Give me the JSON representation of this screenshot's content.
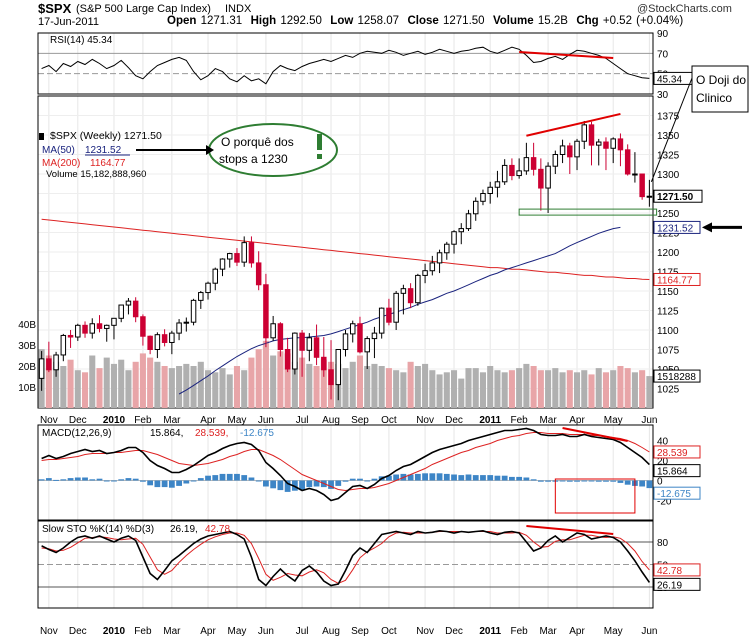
{
  "header": {
    "symbol": "$SPX",
    "name": "(S&P 500 Large Cap Index)",
    "exchange": "INDX",
    "watermark": "@StockCharts.com",
    "date": "17-Jun-2011",
    "quote": {
      "open_label": "Open",
      "open": "1271.31",
      "high_label": "High",
      "high": "1292.50",
      "low_label": "Low",
      "low": "1258.07",
      "close_label": "Close",
      "close": "1271.50",
      "volume_label": "Volume",
      "volume": "15.2B",
      "chg_label": "Chg",
      "chg": "+0.52 (+0.04%)"
    }
  },
  "annotations": {
    "doji_note": "O Doji do Clinico",
    "ellipse_note_line1": "O porquê dos",
    "ellipse_note_line2": "stops a 1230"
  },
  "colors": {
    "up": "#000000",
    "down": "#cc0033",
    "ma50": "#1a237e",
    "ma200": "#dd2222",
    "vol_up": "#b0b0b0",
    "vol_down": "#e8a5a8",
    "macd_hist": "#3d85c6",
    "annot_red": "#e00000",
    "annot_green": "#2e7d32"
  },
  "x_axis": {
    "labels": [
      "Nov",
      "Dec",
      "2010",
      "Feb",
      "Mar",
      "Apr",
      "May",
      "Jun",
      "Jul",
      "Aug",
      "Sep",
      "Oct",
      "Nov",
      "Dec",
      "2011",
      "Feb",
      "Mar",
      "Apr",
      "May",
      "Jun"
    ],
    "label_weeks": [
      1,
      5,
      10,
      14,
      18,
      23,
      27,
      31,
      36,
      40,
      44,
      48,
      53,
      57,
      62,
      66,
      70,
      74,
      79,
      84
    ]
  },
  "chart_data": [
    {
      "type": "line",
      "panel": "rsi",
      "legend": "RSI(14) 45.34",
      "ylim": [
        30,
        90
      ],
      "ticks": [
        30,
        50,
        70,
        90
      ],
      "reference_lines": [
        30,
        50,
        70
      ],
      "last_value_label": "45.34",
      "values": [
        55,
        58,
        52,
        60,
        57,
        62,
        59,
        64,
        60,
        55,
        58,
        63,
        56,
        48,
        45,
        52,
        58,
        61,
        64,
        66,
        63,
        52,
        44,
        48,
        55,
        52,
        45,
        42,
        48,
        43,
        45,
        40,
        52,
        58,
        55,
        53,
        57,
        60,
        62,
        64,
        62,
        65,
        68,
        66,
        70,
        72,
        71,
        70,
        73,
        71,
        68,
        70,
        72,
        69,
        71,
        74,
        72,
        70,
        72,
        73,
        75,
        76,
        72,
        70,
        73,
        76,
        74,
        68,
        61,
        62,
        65,
        67,
        64,
        69,
        73,
        72,
        70,
        68,
        65,
        60,
        55,
        50,
        48,
        46,
        45.34
      ]
    },
    {
      "type": "candlestick",
      "panel": "price",
      "legend": "$SPX (Weekly) 1271.50",
      "ylim": [
        1000,
        1400
      ],
      "ticks": [
        1025,
        1050,
        1075,
        1100,
        1125,
        1150,
        1175,
        1200,
        1225,
        1250,
        1275,
        1300,
        1325,
        1350,
        1375
      ],
      "ohlc": [
        [
          1038,
          1073,
          1022,
          1063
        ],
        [
          1063,
          1085,
          1046,
          1049
        ],
        [
          1049,
          1072,
          1040,
          1068
        ],
        [
          1068,
          1095,
          1060,
          1093
        ],
        [
          1093,
          1100,
          1077,
          1091
        ],
        [
          1091,
          1108,
          1086,
          1106
        ],
        [
          1106,
          1111,
          1090,
          1096
        ],
        [
          1096,
          1115,
          1089,
          1108
        ],
        [
          1108,
          1119,
          1097,
          1102
        ],
        [
          1102,
          1107,
          1085,
          1106
        ],
        [
          1106,
          1115,
          1088,
          1115
        ],
        [
          1115,
          1132,
          1110,
          1132
        ],
        [
          1132,
          1141,
          1120,
          1137
        ],
        [
          1137,
          1142,
          1110,
          1117
        ],
        [
          1117,
          1120,
          1080,
          1092
        ],
        [
          1092,
          1093,
          1069,
          1075
        ],
        [
          1075,
          1097,
          1064,
          1094
        ],
        [
          1094,
          1101,
          1079,
          1084
        ],
        [
          1084,
          1099,
          1069,
          1096
        ],
        [
          1096,
          1114,
          1087,
          1109
        ],
        [
          1109,
          1116,
          1098,
          1110
        ],
        [
          1110,
          1140,
          1106,
          1138
        ],
        [
          1138,
          1150,
          1127,
          1148
        ],
        [
          1148,
          1162,
          1139,
          1160
        ],
        [
          1160,
          1180,
          1151,
          1178
        ],
        [
          1178,
          1192,
          1169,
          1191
        ],
        [
          1191,
          1199,
          1180,
          1198
        ],
        [
          1198,
          1205,
          1182,
          1187
        ],
        [
          1187,
          1220,
          1181,
          1212
        ],
        [
          1212,
          1220,
          1180,
          1186
        ],
        [
          1186,
          1201,
          1151,
          1158
        ],
        [
          1158,
          1172,
          1078,
          1090
        ],
        [
          1090,
          1118,
          1086,
          1108
        ],
        [
          1108,
          1110,
          1066,
          1075
        ],
        [
          1075,
          1090,
          1046,
          1050
        ],
        [
          1050,
          1097,
          1043,
          1096
        ],
        [
          1096,
          1100,
          1040,
          1074
        ],
        [
          1074,
          1096,
          1060,
          1090
        ],
        [
          1090,
          1107,
          1055,
          1065
        ],
        [
          1065,
          1091,
          1040,
          1049
        ],
        [
          1049,
          1087,
          1011,
          1030
        ],
        [
          1030,
          1071,
          1010,
          1075
        ],
        [
          1075,
          1100,
          1066,
          1095
        ],
        [
          1095,
          1112,
          1084,
          1108
        ],
        [
          1108,
          1117,
          1070,
          1072
        ],
        [
          1072,
          1092,
          1050,
          1089
        ],
        [
          1089,
          1104,
          1064,
          1096
        ],
        [
          1096,
          1129,
          1089,
          1128
        ],
        [
          1128,
          1140,
          1106,
          1110
        ],
        [
          1110,
          1150,
          1100,
          1147
        ],
        [
          1147,
          1158,
          1120,
          1153
        ],
        [
          1153,
          1160,
          1128,
          1135
        ],
        [
          1135,
          1172,
          1131,
          1170
        ],
        [
          1170,
          1185,
          1160,
          1176
        ],
        [
          1176,
          1195,
          1170,
          1186
        ],
        [
          1186,
          1203,
          1173,
          1199
        ],
        [
          1199,
          1213,
          1190,
          1210
        ],
        [
          1210,
          1228,
          1198,
          1226
        ],
        [
          1226,
          1237,
          1210,
          1230
        ],
        [
          1230,
          1254,
          1227,
          1249
        ],
        [
          1249,
          1270,
          1240,
          1265
        ],
        [
          1265,
          1280,
          1260,
          1275
        ],
        [
          1275,
          1290,
          1262,
          1283
        ],
        [
          1283,
          1304,
          1270,
          1290
        ],
        [
          1290,
          1319,
          1286,
          1311
        ],
        [
          1311,
          1320,
          1292,
          1298
        ],
        [
          1298,
          1320,
          1294,
          1304
        ],
        [
          1304,
          1340,
          1299,
          1321
        ],
        [
          1321,
          1340,
          1298,
          1306
        ],
        [
          1306,
          1320,
          1253,
          1282
        ],
        [
          1282,
          1315,
          1250,
          1310
        ],
        [
          1310,
          1330,
          1300,
          1325
        ],
        [
          1325,
          1344,
          1314,
          1336
        ],
        [
          1336,
          1340,
          1300,
          1322
        ],
        [
          1322,
          1345,
          1305,
          1342
        ],
        [
          1342,
          1368,
          1332,
          1363
        ],
        [
          1363,
          1367,
          1311,
          1337
        ],
        [
          1337,
          1345,
          1311,
          1341
        ],
        [
          1341,
          1347,
          1305,
          1333
        ],
        [
          1333,
          1347,
          1314,
          1345
        ],
        [
          1345,
          1352,
          1310,
          1331
        ],
        [
          1331,
          1338,
          1298,
          1300
        ],
        [
          1300,
          1328,
          1289,
          1300
        ],
        [
          1300,
          1299,
          1267,
          1271
        ],
        [
          1271.31,
          1292.5,
          1258.07,
          1271.5
        ]
      ],
      "ma50": {
        "legend_label": "MA(50)",
        "legend_value": "1231.52",
        "last_label": "1231.52",
        "start_week": 19,
        "values": [
          1018,
          1023,
          1029,
          1035,
          1041,
          1048,
          1054,
          1060,
          1066,
          1071,
          1076,
          1080,
          1083,
          1086,
          1088,
          1089,
          1090,
          1090,
          1091,
          1092,
          1093,
          1095,
          1098,
          1101,
          1104,
          1107,
          1110,
          1114,
          1117,
          1120,
          1123,
          1126,
          1129,
          1133,
          1136,
          1139,
          1143,
          1147,
          1150,
          1154,
          1158,
          1162,
          1166,
          1170,
          1173,
          1177,
          1180,
          1183,
          1186,
          1189,
          1192,
          1195,
          1198,
          1203,
          1208,
          1212,
          1216,
          1220,
          1224,
          1227,
          1230,
          1231.52
        ]
      },
      "ma200": {
        "legend_label": "MA(200)",
        "legend_value": "1164.77",
        "last_label": "1164.77",
        "start_week": 0,
        "values": [
          1242,
          1241,
          1240,
          1239,
          1238,
          1237,
          1236,
          1235,
          1234,
          1233,
          1232,
          1231,
          1230,
          1229,
          1228,
          1227,
          1226,
          1225,
          1224,
          1223,
          1222,
          1221,
          1220,
          1219,
          1218,
          1217,
          1216,
          1215,
          1214,
          1213,
          1212,
          1211,
          1210,
          1209,
          1208,
          1207,
          1206,
          1205,
          1204,
          1203,
          1202,
          1201,
          1200,
          1199,
          1198,
          1197,
          1196,
          1195,
          1194,
          1193,
          1192,
          1191,
          1190,
          1189,
          1188,
          1187,
          1186,
          1185,
          1184,
          1183,
          1182,
          1181,
          1180,
          1180,
          1179,
          1178,
          1178,
          1177,
          1176,
          1175,
          1174,
          1174,
          1173,
          1172,
          1171,
          1170,
          1170,
          1169,
          1168,
          1168,
          1167,
          1166,
          1166,
          1165,
          1164.77
        ]
      }
    },
    {
      "type": "bar",
      "panel": "volume",
      "legend": "Volume 15,182,888,960",
      "unit": "B",
      "ticks": [
        "10B",
        "20B",
        "30B",
        "40B"
      ],
      "tick_values": [
        10,
        20,
        30,
        40
      ],
      "last_label": "1518288",
      "values": [
        28,
        25,
        22,
        20,
        23,
        18,
        17,
        25,
        19,
        24,
        21,
        23,
        18,
        22,
        26,
        24,
        22,
        20,
        19,
        20,
        21,
        20,
        22,
        18,
        17,
        19,
        16,
        20,
        18,
        24,
        28,
        32,
        25,
        27,
        26,
        22,
        24,
        21,
        20,
        23,
        22,
        21,
        19,
        22,
        25,
        20,
        21,
        20,
        19,
        18,
        17,
        22,
        20,
        21,
        18,
        16,
        17,
        18,
        14,
        19,
        19,
        17,
        20,
        18,
        17,
        18,
        19,
        21,
        20,
        18,
        18,
        19,
        17,
        18,
        17,
        18,
        16,
        19,
        17,
        18,
        20,
        19,
        17,
        18,
        15.2
      ]
    },
    {
      "type": "line",
      "panel": "macd",
      "legend": "MACD(12,26,9) 15.864, 28.539, -12.675",
      "legend_parts": {
        "label": "MACD(12,26,9)",
        "macd": "15.864",
        "signal": "28.539",
        "hist": "-12.675"
      },
      "ticks": [
        -20,
        0,
        20,
        40
      ],
      "macd": [
        22,
        25,
        22,
        24,
        27,
        29,
        31,
        29,
        30,
        27,
        28,
        30,
        33,
        33,
        28,
        20,
        15,
        12,
        8,
        8,
        11,
        15,
        20,
        25,
        28,
        32,
        35,
        37,
        38,
        36,
        30,
        18,
        12,
        5,
        -3,
        -6,
        -10,
        -8,
        -10,
        -14,
        -20,
        -18,
        -12,
        -6,
        -5,
        -8,
        -4,
        2,
        5,
        10,
        14,
        16,
        20,
        24,
        28,
        31,
        33,
        35,
        37,
        40,
        42,
        44,
        46,
        48,
        50,
        50,
        51,
        52,
        50,
        46,
        45,
        45,
        46,
        44,
        44,
        46,
        44,
        43,
        42,
        41,
        38,
        33,
        28,
        23,
        15.864
      ],
      "signal": [
        20,
        21,
        21,
        22,
        23,
        24,
        26,
        27,
        27,
        27,
        28,
        28,
        29,
        30,
        30,
        28,
        26,
        23,
        20,
        17,
        16,
        15,
        16,
        17,
        19,
        21,
        24,
        26,
        29,
        31,
        31,
        28,
        25,
        21,
        16,
        11,
        6,
        3,
        0,
        -3,
        -6,
        -9,
        -10,
        -9,
        -8,
        -8,
        -7,
        -5,
        -3,
        0,
        3,
        6,
        9,
        12,
        16,
        19,
        22,
        25,
        28,
        30,
        33,
        35,
        37,
        40,
        42,
        44,
        45,
        47,
        48,
        48,
        47,
        47,
        47,
        46,
        46,
        46,
        45,
        45,
        44,
        43,
        42,
        40,
        37,
        33,
        28.539
      ]
    },
    {
      "type": "line",
      "panel": "sto",
      "legend": "Slow STO %K(14) %D(3) 26.19, 42.78",
      "legend_parts": {
        "label": "Slow STO %K(14) %D(3)",
        "k": "26.19",
        "d": "42.78"
      },
      "ticks": [
        20,
        50,
        80
      ],
      "reference_lines": [
        20,
        50,
        80
      ],
      "k": [
        75,
        70,
        66,
        72,
        80,
        86,
        88,
        85,
        88,
        84,
        80,
        85,
        88,
        82,
        60,
        38,
        30,
        42,
        55,
        62,
        70,
        78,
        84,
        88,
        90,
        92,
        94,
        90,
        84,
        60,
        30,
        22,
        34,
        44,
        35,
        28,
        42,
        48,
        40,
        28,
        22,
        24,
        42,
        62,
        72,
        66,
        78,
        90,
        92,
        94,
        92,
        90,
        94,
        92,
        93,
        95,
        94,
        92,
        94,
        93,
        94,
        95,
        92,
        90,
        93,
        94,
        92,
        80,
        68,
        72,
        82,
        88,
        80,
        86,
        92,
        90,
        84,
        86,
        88,
        86,
        80,
        68,
        55,
        40,
        26.19
      ],
      "d": [
        72,
        71,
        68,
        69,
        73,
        79,
        85,
        86,
        87,
        86,
        84,
        83,
        84,
        85,
        77,
        60,
        43,
        37,
        42,
        53,
        62,
        70,
        77,
        83,
        87,
        90,
        92,
        92,
        89,
        78,
        58,
        37,
        29,
        33,
        38,
        36,
        35,
        40,
        43,
        39,
        30,
        25,
        29,
        43,
        59,
        67,
        72,
        78,
        87,
        92,
        93,
        92,
        92,
        92,
        93,
        94,
        94,
        94,
        94,
        93,
        94,
        94,
        94,
        92,
        92,
        92,
        93,
        89,
        80,
        73,
        74,
        81,
        83,
        83,
        86,
        89,
        89,
        87,
        86,
        87,
        85,
        78,
        68,
        54,
        42.78
      ]
    }
  ]
}
